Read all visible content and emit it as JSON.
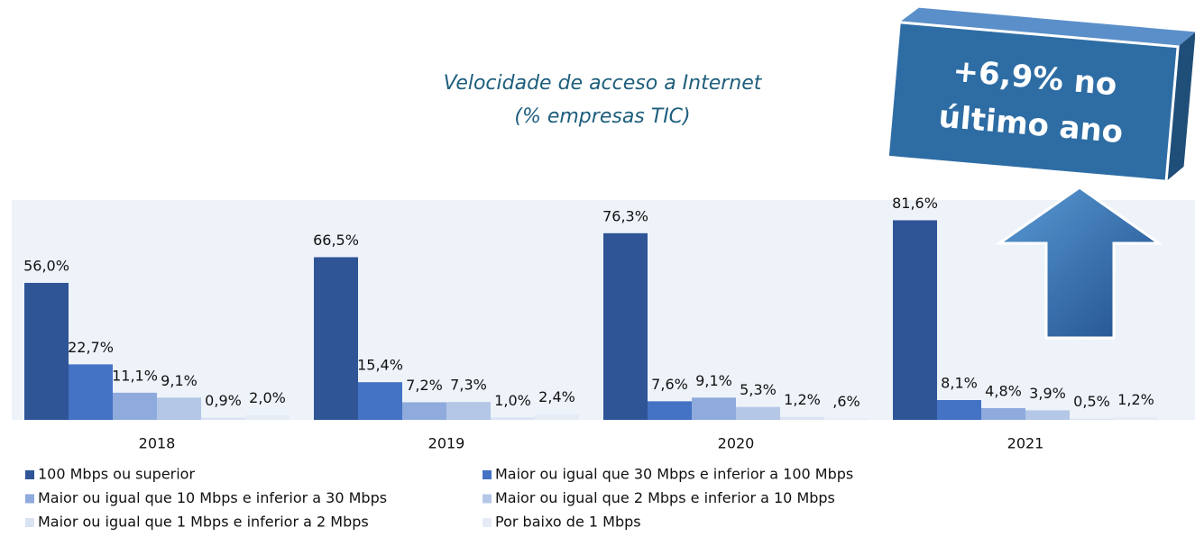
{
  "chart_data": {
    "type": "bar",
    "title": "Velocidade de acceso a Internet",
    "subtitle": "(% empresas TIC)",
    "annotation": [
      "+6,9% no",
      "último ano"
    ],
    "categories": [
      "2018",
      "2019",
      "2020",
      "2021"
    ],
    "series": [
      {
        "name": "100 Mbps ou superior",
        "color": "#2f5597",
        "values": [
          56.0,
          66.5,
          76.3,
          81.6
        ],
        "value_labels": [
          "56,0%",
          "66,5%",
          "76,3%",
          "81,6%"
        ]
      },
      {
        "name": "Maior ou igual que 30 Mbps e inferior a 100 Mbps",
        "color": "#4472c4",
        "values": [
          22.7,
          15.4,
          7.6,
          8.1
        ],
        "value_labels": [
          "22,7%",
          "15,4%",
          "7,6%",
          "8,1%"
        ]
      },
      {
        "name": "Maior ou igual que 10 Mbps e inferior a 30 Mbps",
        "color": "#8faadc",
        "values": [
          11.1,
          7.2,
          9.1,
          4.8
        ],
        "value_labels": [
          "11,1%",
          "7,2%",
          "9,1%",
          "4,8%"
        ]
      },
      {
        "name": "Maior ou igual que 2 Mbps e inferior a 10 Mbps",
        "color": "#b4c7e7",
        "values": [
          9.1,
          7.3,
          5.3,
          3.9
        ],
        "value_labels": [
          "9,1%",
          "7,3%",
          "5,3%",
          "3,9%"
        ]
      },
      {
        "name": "Maior ou igual que 1 Mbps e inferior a 2 Mbps",
        "color": "#dae3f3",
        "values": [
          0.9,
          1.0,
          1.2,
          0.5
        ],
        "value_labels": [
          "0,9%",
          "1,0%",
          "1,2%",
          "0,5%"
        ]
      },
      {
        "name": "Por baixo de 1 Mbps",
        "color": "#e6ecf6",
        "values": [
          2.0,
          2.4,
          0.6,
          1.2
        ],
        "value_labels": [
          "2,0%",
          "2,4%",
          ",6%",
          "1,2%"
        ]
      }
    ]
  }
}
